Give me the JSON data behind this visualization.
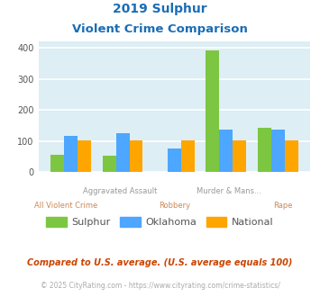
{
  "title_line1": "2019 Sulphur",
  "title_line2": "Violent Crime Comparison",
  "sulphur": [
    55,
    52,
    0,
    393,
    143
  ],
  "oklahoma": [
    117,
    126,
    76,
    136,
    136
  ],
  "national": [
    102,
    102,
    102,
    102,
    102
  ],
  "bar_colors": {
    "sulphur": "#7dc642",
    "oklahoma": "#4da6ff",
    "national": "#ffa500"
  },
  "ylim": [
    0,
    420
  ],
  "yticks": [
    0,
    100,
    200,
    300,
    400
  ],
  "bg_color": "#ddeef5",
  "grid_color": "#ffffff",
  "title_color": "#1a6db5",
  "top_label_color": "#999999",
  "bottom_label_color": "#cc8855",
  "top_labels": [
    "",
    "Aggravated Assault",
    "",
    "Murder & Mans...",
    ""
  ],
  "bottom_labels": [
    "All Violent Crime",
    "",
    "Robbery",
    "",
    "Rape"
  ],
  "legend_labels": [
    "Sulphur",
    "Oklahoma",
    "National"
  ],
  "footnote1": "Compared to U.S. average. (U.S. average equals 100)",
  "footnote2": "© 2025 CityRating.com - https://www.cityrating.com/crime-statistics/",
  "footnote1_color": "#cc4400",
  "footnote2_color": "#aaaaaa"
}
